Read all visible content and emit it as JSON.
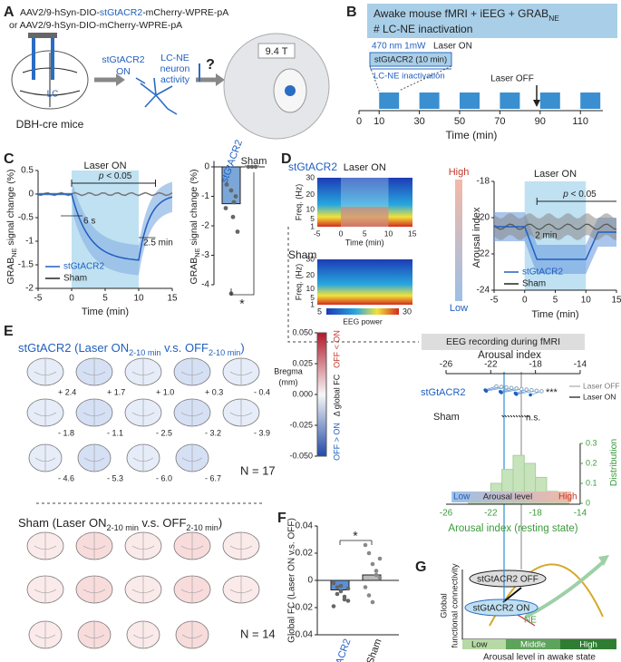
{
  "panel_a": {
    "label": "A",
    "vector_1": [
      "AAV2/9-hSyn-DIO-",
      "stGtACR2",
      "-mCherry-WPRE-pA"
    ],
    "vector_2": "or  AAV2/9-hSyn-DIO-mCherry-WPRE-pA",
    "lc": "LC",
    "mice": "DBH-cre mice",
    "opsin": "stGtACR2",
    "on": "ON",
    "activity": [
      "LC-NE",
      "neuron",
      "activity"
    ],
    "question": "?",
    "magnet": "9.4 T"
  },
  "panel_b": {
    "label": "B",
    "title": [
      "Awake mouse fMRI  + iEEG + GRAB",
      "NE"
    ],
    "subtitle": "# LC-NE inactivation",
    "laser": "470 nm 1mW",
    "laser_on": "Laser ON",
    "block": "stGtACR2 (10 min)",
    "inactivation": "LC-NE inactivation",
    "laser_off": "Laser OFF",
    "xticks": [
      "0",
      "10",
      "30",
      "50",
      "70",
      "90",
      "110"
    ],
    "xlabel": "Time (min)"
  },
  "panel_c": {
    "label": "C",
    "laser_on": "Laser ON",
    "p": [
      "p",
      " < 0.05"
    ],
    "onset": "6 s",
    "offset": "2.5 min",
    "ylabel": [
      "GRAB",
      "NE",
      " signal change (%)"
    ],
    "yticks": [
      "0.5",
      "0",
      "-0.5",
      "-1",
      "-1.5",
      "-2"
    ],
    "xticks": [
      "-5",
      "0",
      "5",
      "10",
      "15"
    ],
    "xlabel": "Time (min)",
    "legend": [
      "stGtACR2",
      "Sham"
    ],
    "bar_yticks": [
      "0",
      "-1",
      "-2",
      "-3",
      "-4"
    ],
    "bar_groups": [
      "stGtACR2",
      "Sham"
    ],
    "significance": "*"
  },
  "panel_d": {
    "label": "D",
    "groups": [
      "stGtACR2",
      "Sham"
    ],
    "laser_on": "Laser ON",
    "freq_label": "Freq. (Hz)",
    "freq_ticks": [
      "30",
      "20",
      "10",
      "5",
      "1"
    ],
    "xticks": [
      "-5",
      "0",
      "5",
      "10",
      "15"
    ],
    "xlabel": "Time (min)",
    "colorbar": [
      "5",
      "EEG power",
      "30"
    ],
    "high": "High",
    "low": "Low",
    "arousal_label": "Arousal index",
    "arousal_ticks": [
      "-18",
      "-20",
      "-22",
      "-24"
    ],
    "p": [
      "p",
      " < 0.05"
    ],
    "delay": "2 min",
    "legend": [
      "stGtACR2",
      "Sham"
    ],
    "eeg": "EEG recording during fMRI"
  },
  "panel_d_index": {
    "title": "Arousal index",
    "top_ticks": [
      "-26",
      "-22",
      "-18",
      "-14"
    ],
    "groups": [
      "stGtACR2",
      "Sham"
    ],
    "stars": "***",
    "ns": "n.s.",
    "legend": [
      "Laser OFF",
      "Laser ON"
    ],
    "level": [
      "Low",
      "Arousal level",
      "High"
    ],
    "dist_label": "Distribution",
    "dist_ticks": [
      "0",
      "0.1",
      "0.2",
      "0.3"
    ],
    "bottom_ticks": [
      "-26",
      "-22",
      "-18",
      "-14"
    ],
    "xlabel": "Arousal index (resting state)"
  },
  "panel_e": {
    "label": "E",
    "title_a": [
      "stGtACR2 (Laser ON",
      "2-10 min",
      " v.s. OFF",
      "2-10 min",
      ")"
    ],
    "title_b": [
      "Sham (Laser ON",
      "2-10 min",
      " v.s. OFF",
      "2-10 min",
      ")"
    ],
    "bregma": [
      "+ 2.4",
      "+ 1.7",
      "+ 1.0",
      "+ 0.3",
      "- 0.4",
      "- 1.8",
      "- 1.1",
      "- 2.5",
      "- 3.2",
      "- 3.9",
      "- 4.6",
      "- 5.3",
      "- 6.0",
      "- 6.7"
    ],
    "bregma_label": [
      "Bregma",
      "(mm)"
    ],
    "n_a": "N = 17",
    "n_b": "N = 14",
    "cbar_ticks": [
      "0.050",
      "0.025",
      "0.000",
      "-0.025",
      "-0.050"
    ],
    "cbar_label": "Δ global FC",
    "cbar_top": "OFF < ON",
    "cbar_bottom": "OFF > ON"
  },
  "panel_f": {
    "label": "F",
    "ylabel": "Global FC (Laser ON v.s. OFF)",
    "yticks": [
      "0.04",
      "0.02",
      "0",
      "-0.02",
      "-0.04"
    ],
    "significance": "*",
    "groups": [
      "stGtACR2",
      "Sham"
    ]
  },
  "panel_g": {
    "label": "G",
    "off": "stGtACR2 OFF",
    "on": "stGtACR2 ON",
    "ne": "NE",
    "ylabel": [
      "Global",
      "functional connectivity"
    ],
    "levels": [
      "Low",
      "Middle",
      "High"
    ],
    "xlabel": "Arousal level in awake state"
  }
}
